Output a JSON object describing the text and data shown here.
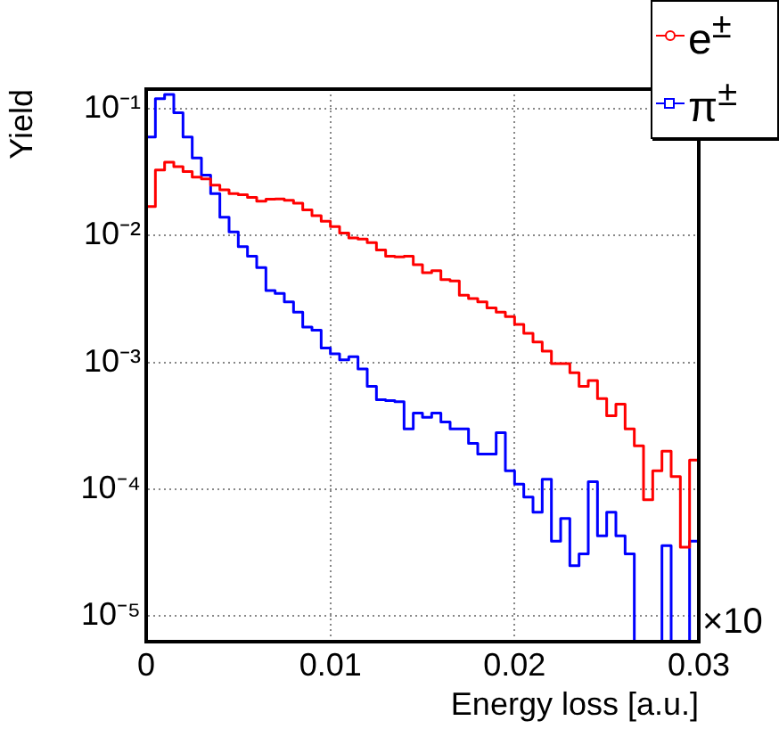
{
  "chart_data": {
    "type": "histogram",
    "xlabel": "Energy loss [a.u.]",
    "ylabel": "Yield",
    "log": "y",
    "grid": true,
    "legend": "top right",
    "bins": [
      0,
      0.0005,
      0.001,
      0.0015,
      0.002,
      0.0025,
      0.003,
      0.0035,
      0.004,
      0.0045,
      0.005,
      0.0055,
      0.006,
      0.0065,
      0.007,
      0.0075,
      0.008,
      0.0085,
      0.009,
      0.0095,
      0.01,
      0.0105,
      0.011,
      0.0115,
      0.012,
      0.0125,
      0.013,
      0.0135,
      0.014,
      0.0145,
      0.015,
      0.0155,
      0.016,
      0.0165,
      0.017,
      0.0175,
      0.018,
      0.0185,
      0.019,
      0.0195,
      0.02,
      0.0205,
      0.021,
      0.0215,
      0.022,
      0.0225,
      0.023,
      0.0235,
      0.024,
      0.0245,
      0.025,
      0.0255,
      0.026,
      0.0265,
      0.027,
      0.0275,
      0.028,
      0.0285,
      0.029,
      0.0295,
      0.03
    ],
    "series": [
      {
        "name": "e$^{±}$",
        "color": "#ff0000",
        "marker": "circle",
        "values": [
          0.017,
          0.033,
          0.038,
          0.035,
          0.032,
          0.029,
          0.028,
          0.025,
          0.023,
          0.0215,
          0.021,
          0.02,
          0.0187,
          0.0194,
          0.0195,
          0.019,
          0.018,
          0.016,
          0.0144,
          0.013,
          0.0118,
          0.0105,
          0.0096,
          0.0094,
          0.0088,
          0.0077,
          0.0069,
          0.0068,
          0.0069,
          0.0059,
          0.0051,
          0.0053,
          0.0045,
          0.0044,
          0.0034,
          0.0032,
          0.003,
          0.0027,
          0.0025,
          0.0023,
          0.002,
          0.0017,
          0.00145,
          0.00123,
          0.00098,
          0.00098,
          0.00083,
          0.00065,
          0.00072,
          0.00052,
          0.00038,
          0.00047,
          0.0003,
          0.00022,
          8.3e-05,
          0.00014,
          0.0002,
          0.000126,
          3.5e-05,
          0.00017
        ]
      },
      {
        "name": "π$^{±}$",
        "color": "#0000ff",
        "marker": "square",
        "values": [
          0.06,
          0.12,
          0.13,
          0.093,
          0.06,
          0.041,
          0.03,
          0.0215,
          0.014,
          0.0107,
          0.0082,
          0.0069,
          0.0056,
          0.0037,
          0.0035,
          0.003,
          0.0025,
          0.0019,
          0.0018,
          0.0013,
          0.00117,
          0.00105,
          0.00111,
          0.00089,
          0.00065,
          0.00051,
          0.0005,
          0.00049,
          0.0003,
          0.0004,
          0.00037,
          0.0004,
          0.00034,
          0.0003,
          0.0003,
          0.00023,
          0.00019,
          0.00019,
          0.00028,
          0.00014,
          0.00011,
          8.7e-05,
          6.6e-05,
          0.00012,
          3.9e-05,
          5.9e-05,
          2.5e-05,
          3.1e-05,
          0.000115,
          4.3e-05,
          6.6e-05,
          4.3e-05,
          3.1e-05,
          null,
          null,
          null,
          3.6e-05,
          null,
          null,
          3.9e-05
        ]
      }
    ],
    "xlim": [
      0,
      0.03
    ],
    "xticks": [
      0,
      0.01,
      0.02,
      0.03
    ],
    "ylim": [
      6.3e-06,
      0.143
    ],
    "yticks": [
      {
        "value": 1e-05,
        "label": "10⁻⁵"
      },
      {
        "value": 0.0001,
        "label": "10⁻⁴"
      },
      {
        "value": 0.001,
        "label": "10⁻³"
      },
      {
        "value": 0.01,
        "label": "10⁻²"
      },
      {
        "value": 0.1,
        "label": "10⁻¹"
      }
    ],
    "annotations": [
      "×10"
    ]
  }
}
